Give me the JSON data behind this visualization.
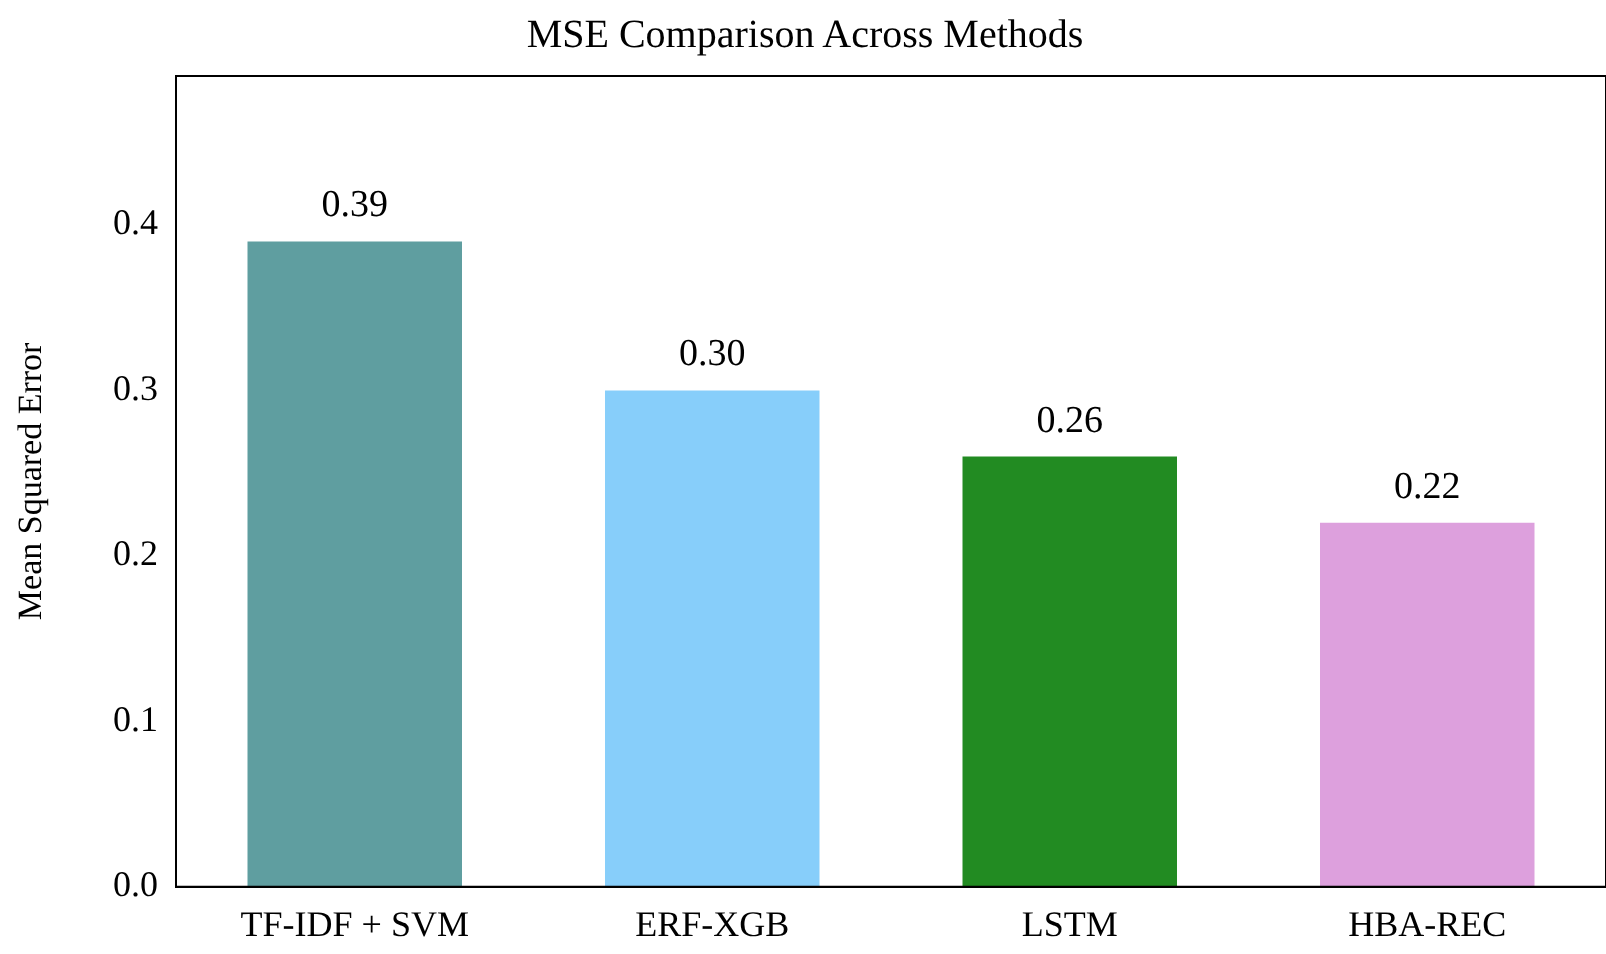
{
  "chart_data": {
    "type": "bar",
    "title": "MSE Comparison Across Methods",
    "ylabel": "Mean Squared Error",
    "categories": [
      "TF-IDF + SVM",
      "ERF-XGB",
      "LSTM",
      "HBA-REC"
    ],
    "values": [
      0.39,
      0.3,
      0.26,
      0.22
    ],
    "colors": [
      "#5f9ea0",
      "#87cefa",
      "#228b22",
      "#dda0dd"
    ],
    "value_labels": [
      "0.39",
      "0.30",
      "0.26",
      "0.22"
    ],
    "ylim": [
      0,
      0.49
    ],
    "yticks": [
      {
        "value": 0,
        "label": "0.0"
      },
      {
        "value": 0.1,
        "label": "0.1"
      },
      {
        "value": 0.2,
        "label": "0.2"
      },
      {
        "value": 0.3,
        "label": "0.3"
      },
      {
        "value": 0.4,
        "label": "0.4"
      }
    ],
    "grid": false,
    "legend": false
  }
}
